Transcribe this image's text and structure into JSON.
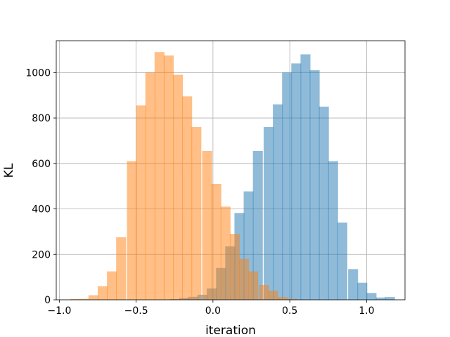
{
  "chart_data": {
    "type": "bar",
    "title": "",
    "xlabel": "iteration",
    "ylabel": "KL",
    "xlim": [
      -1.02,
      1.25
    ],
    "ylim": [
      0,
      1140
    ],
    "grid": true,
    "legend": "none",
    "x_ticks": [
      -1.0,
      -0.5,
      0.0,
      0.5,
      1.0
    ],
    "x_tick_labels": [
      "−1.0",
      "−0.5",
      "0.0",
      "0.5",
      "1.0"
    ],
    "y_ticks": [
      0,
      200,
      400,
      600,
      800,
      1000
    ],
    "y_tick_labels": [
      "0",
      "200",
      "400",
      "600",
      "800",
      "1000"
    ],
    "series": [
      {
        "color": "#1f77b4",
        "alpha": 0.5,
        "bin_width": 0.063,
        "bins": [
          [
            -0.34,
            1
          ],
          [
            -0.28,
            3
          ],
          [
            -0.22,
            8
          ],
          [
            -0.16,
            13
          ],
          [
            -0.1,
            22
          ],
          [
            -0.04,
            50
          ],
          [
            0.02,
            140
          ],
          [
            0.08,
            235
          ],
          [
            0.14,
            382
          ],
          [
            0.2,
            477
          ],
          [
            0.26,
            655
          ],
          [
            0.33,
            760
          ],
          [
            0.39,
            860
          ],
          [
            0.45,
            1000
          ],
          [
            0.51,
            1040
          ],
          [
            0.57,
            1080
          ],
          [
            0.63,
            1010
          ],
          [
            0.69,
            850
          ],
          [
            0.75,
            610
          ],
          [
            0.81,
            340
          ],
          [
            0.88,
            135
          ],
          [
            0.94,
            75
          ],
          [
            1.0,
            30
          ],
          [
            1.06,
            10
          ],
          [
            1.12,
            12
          ]
        ]
      },
      {
        "color": "#ff7f0e",
        "alpha": 0.5,
        "bin_width": 0.063,
        "bins": [
          [
            -0.93,
            3
          ],
          [
            -0.87,
            4
          ],
          [
            -0.81,
            20
          ],
          [
            -0.75,
            60
          ],
          [
            -0.69,
            125
          ],
          [
            -0.63,
            275
          ],
          [
            -0.56,
            610
          ],
          [
            -0.5,
            855
          ],
          [
            -0.44,
            1000
          ],
          [
            -0.38,
            1090
          ],
          [
            -0.32,
            1075
          ],
          [
            -0.26,
            990
          ],
          [
            -0.2,
            895
          ],
          [
            -0.14,
            760
          ],
          [
            -0.07,
            655
          ],
          [
            -0.01,
            510
          ],
          [
            0.05,
            410
          ],
          [
            0.11,
            290
          ],
          [
            0.17,
            180
          ],
          [
            0.23,
            125
          ],
          [
            0.3,
            65
          ],
          [
            0.36,
            40
          ],
          [
            0.42,
            12
          ],
          [
            0.48,
            4
          ]
        ]
      }
    ]
  }
}
